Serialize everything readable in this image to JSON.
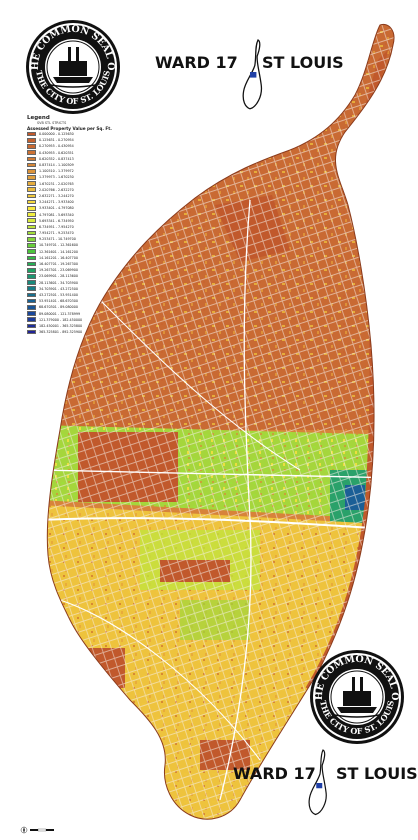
{
  "seal": {
    "top_text": "THE COMMON SEAL OF",
    "bottom_text": "THE CITY OF ST. LOUIS"
  },
  "header": {
    "ward_label": "WARD 17",
    "city_label": "ST LOUIS"
  },
  "footer": {
    "ward_label": "WARD 17",
    "city_label": "ST LOUIS"
  },
  "legend": {
    "title": "Legend",
    "subtitle": "SVB STL STRICTS",
    "heading": "Assessed Property Value per Sq. Ft.",
    "classes": [
      {
        "label": "0.000000 - 0.125630",
        "color": "#c1592c"
      },
      {
        "label": "0.125631 - 0.270954",
        "color": "#c46130"
      },
      {
        "label": "0.270955 - 0.430954",
        "color": "#c86932"
      },
      {
        "label": "0.430955 - 0.620351",
        "color": "#cc7234"
      },
      {
        "label": "0.620352 - 0.837413",
        "color": "#d17c36"
      },
      {
        "label": "0.837414 - 1.100509",
        "color": "#d68738"
      },
      {
        "label": "1.100510 - 1.379972",
        "color": "#db933a"
      },
      {
        "label": "1.379973 - 1.670230",
        "color": "#e09f3c"
      },
      {
        "label": "1.670231 - 2.020765",
        "color": "#e6ac3d"
      },
      {
        "label": "2.020766 - 2.632270",
        "color": "#ebbb3e"
      },
      {
        "label": "2.632271 - 3.244270",
        "color": "#f0c93e"
      },
      {
        "label": "3.244271 - 3.933400",
        "color": "#f5d93f"
      },
      {
        "label": "3.933401 - 4.797080",
        "color": "#f8e83f"
      },
      {
        "label": "4.797081 - 5.693340",
        "color": "#f0ee3f"
      },
      {
        "label": "5.693341 - 6.734950",
        "color": "#d9ec3e"
      },
      {
        "label": "6.734951 - 7.954270",
        "color": "#bfe63d"
      },
      {
        "label": "7.954271 - 9.253470",
        "color": "#a3de3c"
      },
      {
        "label": "9.253471 - 10.749700",
        "color": "#86d63b"
      },
      {
        "label": "10.749701 - 12.361600",
        "color": "#68cd3b"
      },
      {
        "label": "12.361601 - 14.161200",
        "color": "#4bc43c"
      },
      {
        "label": "14.161201 - 16.407700",
        "color": "#33b945"
      },
      {
        "label": "16.407701 - 19.267300",
        "color": "#26ad55"
      },
      {
        "label": "19.267301 - 23.069900",
        "color": "#1fa163"
      },
      {
        "label": "23.069901 - 28.113600",
        "color": "#1b9570"
      },
      {
        "label": "28.113601 - 34.703900",
        "color": "#19897b"
      },
      {
        "label": "34.703901 - 43.272500",
        "color": "#187c85"
      },
      {
        "label": "43.272501 - 53.951400",
        "color": "#186f8d"
      },
      {
        "label": "53.951401 - 68.670300",
        "color": "#186193"
      },
      {
        "label": "68.670301 - 89.080000",
        "color": "#185497"
      },
      {
        "label": "89.080001 - 121.378999",
        "color": "#19479a"
      },
      {
        "label": "121.379000 - 182.450000",
        "color": "#1b3a9b"
      },
      {
        "label": "182.450001 - 365.325800",
        "color": "#1e2e9a"
      },
      {
        "label": "365.325801 - 892.325900",
        "color": "#202396"
      }
    ]
  },
  "colors": {
    "seal_black": "#111111",
    "parcel_brown": "#c1592c",
    "parcel_orange": "#d8873a",
    "parcel_yellow": "#f5d43f",
    "parcel_green": "#6fcf3a",
    "parcel_teal": "#1f9a72",
    "parcel_blue": "#1a4aa0",
    "ward_marker_blue": "#1f3fa6"
  },
  "icons": {
    "seal": "city-seal-icon",
    "locator": "city-outline-locator-icon",
    "compass": "north-arrow-icon"
  }
}
